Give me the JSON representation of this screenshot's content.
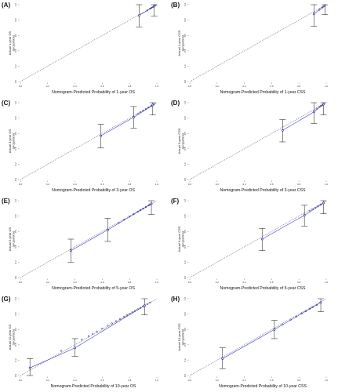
{
  "figure": {
    "panels": [
      {
        "label": "(A)",
        "xlabel": "Nomogram-Predicted Probability of 1-year OS",
        "ylabel_line1": "Actual 1-year OS",
        "ylabel_line2": "(proportion)"
      },
      {
        "label": "(B)",
        "xlabel": "Nomogram-Predicted Probability of 1-year CSS",
        "ylabel_line1": "Actual 1-year CSS",
        "ylabel_line2": "(proportion)"
      },
      {
        "label": "(C)",
        "xlabel": "Nomogram-Predicted Probability of 3-year OS",
        "ylabel_line1": "Actual 3-year OS",
        "ylabel_line2": "(proportion)"
      },
      {
        "label": "(D)",
        "xlabel": "Nomogram-Predicted Probability of 3-year CSS",
        "ylabel_line1": "Actual 3-year CSS",
        "ylabel_line2": "(proportion)"
      },
      {
        "label": "(E)",
        "xlabel": "Nomogram-Predicted Probability of 5-year OS",
        "ylabel_line1": "Actual 5-year OS",
        "ylabel_line2": "(proportion)"
      },
      {
        "label": "(F)",
        "xlabel": "Nomogram-Predicted Probability of 5-year CSS",
        "ylabel_line1": "Actual 5-year CSS",
        "ylabel_line2": "(proportion)"
      },
      {
        "label": "(G)",
        "xlabel": "Nomogram-Predicted Probability of 10-year OS",
        "ylabel_line1": "Actual 10-year OS",
        "ylabel_line2": "(proportion)"
      },
      {
        "label": "(H)",
        "xlabel": "Nomogram-Predicted Probability of 10-year CSS",
        "ylabel_line1": "Actual 10-year CSS",
        "ylabel_line2": "(proportion)"
      }
    ]
  },
  "colors": {
    "ideal_line": "#777777",
    "model_line": "#3a3ad8",
    "points": "#1a1a8c",
    "errorbar": "#111111"
  },
  "chart_data": [
    {
      "type": "scatter",
      "title": "(A)",
      "xlabel": "Nomogram-Predicted Probability of 1-year OS",
      "ylabel": "Actual 1-year OS (proportion)",
      "xlim": [
        0,
        1
      ],
      "ylim": [
        0,
        1
      ],
      "x_ticks": [
        "0.0",
        "0.2",
        "0.4",
        "0.6",
        "0.8",
        "1.0"
      ],
      "y_ticks": [
        "0.0",
        "0.2",
        "0.4",
        "0.6",
        "0.8",
        "1.0"
      ],
      "groups": [
        {
          "x": 0.87,
          "y": 0.86,
          "lo": 0.71,
          "hi": 1.0
        },
        {
          "x": 0.98,
          "y": 0.98,
          "lo": 0.85,
          "hi": 1.0
        }
      ],
      "dense_points": [
        0.93,
        0.95,
        0.96,
        0.97,
        0.99
      ]
    },
    {
      "type": "scatter",
      "title": "(B)",
      "xlabel": "Nomogram-Predicted Probability of 1-year CSS",
      "ylabel": "Actual 1-year CSS (proportion)",
      "xlim": [
        0,
        1
      ],
      "ylim": [
        0,
        1
      ],
      "x_ticks": [
        "0.0",
        "0.2",
        "0.4",
        "0.6",
        "0.8",
        "1.0"
      ],
      "y_ticks": [
        "0.0",
        "0.2",
        "0.4",
        "0.6",
        "0.8",
        "1.0"
      ],
      "groups": [
        {
          "x": 0.91,
          "y": 0.88,
          "lo": 0.72,
          "hi": 1.0
        },
        {
          "x": 0.99,
          "y": 0.99,
          "lo": 0.87,
          "hi": 1.0
        }
      ],
      "dense_points": [
        0.95,
        0.97,
        0.98
      ]
    },
    {
      "type": "scatter",
      "title": "(C)",
      "xlabel": "Nomogram-Predicted Probability of 3-year OS",
      "ylabel": "Actual 3-year OS (proportion)",
      "xlim": [
        0,
        1
      ],
      "ylim": [
        0,
        1
      ],
      "x_ticks": [
        "0.0",
        "0.2",
        "0.4",
        "0.6",
        "0.8",
        "1.0"
      ],
      "y_ticks": [
        "0.0",
        "0.2",
        "0.4",
        "0.6",
        "0.8",
        "1.0"
      ],
      "groups": [
        {
          "x": 0.59,
          "y": 0.57,
          "lo": 0.41,
          "hi": 0.72
        },
        {
          "x": 0.83,
          "y": 0.81,
          "lo": 0.67,
          "hi": 0.95
        },
        {
          "x": 0.97,
          "y": 0.97,
          "lo": 0.84,
          "hi": 1.0
        }
      ],
      "dense_points": [
        0.86,
        0.88,
        0.9,
        0.92,
        0.94,
        0.96,
        0.98
      ]
    },
    {
      "type": "scatter",
      "title": "(D)",
      "xlabel": "Nomogram-Predicted Probability of 3-year CSS",
      "ylabel": "Actual 3-year CSS (proportion)",
      "xlim": [
        0,
        1
      ],
      "ylim": [
        0,
        1
      ],
      "x_ticks": [
        "0.0",
        "0.2",
        "0.4",
        "0.6",
        "0.8",
        "1.0"
      ],
      "y_ticks": [
        "0.0",
        "0.2",
        "0.4",
        "0.6",
        "0.8",
        "1.0"
      ],
      "groups": [
        {
          "x": 0.68,
          "y": 0.64,
          "lo": 0.49,
          "hi": 0.78
        },
        {
          "x": 0.91,
          "y": 0.88,
          "lo": 0.73,
          "hi": 1.0
        },
        {
          "x": 0.98,
          "y": 0.98,
          "lo": 0.84,
          "hi": 1.0
        }
      ],
      "dense_points": [
        0.93,
        0.95,
        0.96,
        0.97
      ]
    },
    {
      "type": "scatter",
      "title": "(E)",
      "xlabel": "Nomogram-Predicted Probability of 5-year OS",
      "ylabel": "Actual 5-year OS (proportion)",
      "xlim": [
        0,
        1
      ],
      "ylim": [
        0,
        1
      ],
      "x_ticks": [
        "0.0",
        "0.2",
        "0.4",
        "0.6",
        "0.8",
        "1.0"
      ],
      "y_ticks": [
        "0.0",
        "0.2",
        "0.4",
        "0.6",
        "0.8",
        "1.0"
      ],
      "groups": [
        {
          "x": 0.37,
          "y": 0.35,
          "lo": 0.2,
          "hi": 0.5
        },
        {
          "x": 0.64,
          "y": 0.62,
          "lo": 0.47,
          "hi": 0.77
        },
        {
          "x": 0.96,
          "y": 0.96,
          "lo": 0.82,
          "hi": 1.0
        }
      ],
      "dense_points": [
        0.72,
        0.76,
        0.8,
        0.83,
        0.86,
        0.88,
        0.9,
        0.92,
        0.94,
        0.95
      ]
    },
    {
      "type": "scatter",
      "title": "(F)",
      "xlabel": "Nomogram-Predicted Probability of 5-year CSS",
      "ylabel": "Actual 5-year CSS (proportion)",
      "xlim": [
        0,
        1
      ],
      "ylim": [
        0,
        1
      ],
      "x_ticks": [
        "0.0",
        "0.2",
        "0.4",
        "0.6",
        "0.8",
        "1.0"
      ],
      "y_ticks": [
        "0.0",
        "0.2",
        "0.4",
        "0.6",
        "0.8",
        "1.0"
      ],
      "groups": [
        {
          "x": 0.53,
          "y": 0.5,
          "lo": 0.35,
          "hi": 0.64
        },
        {
          "x": 0.84,
          "y": 0.81,
          "lo": 0.67,
          "hi": 0.94
        },
        {
          "x": 0.98,
          "y": 0.97,
          "lo": 0.83,
          "hi": 1.0
        }
      ],
      "dense_points": [
        0.88,
        0.9,
        0.92,
        0.94,
        0.96
      ]
    },
    {
      "type": "scatter",
      "title": "(G)",
      "xlabel": "Nomogram-Predicted Probability of 10-year OS",
      "ylabel": "Actual 10-year OS (proportion)",
      "xlim": [
        0,
        1
      ],
      "ylim": [
        0,
        1
      ],
      "x_ticks": [
        "0.0",
        "0.2",
        "0.4",
        "0.6",
        "0.8",
        "1.0"
      ],
      "y_ticks": [
        "0.0",
        "0.2",
        "0.4",
        "0.6",
        "0.8",
        "1.0"
      ],
      "groups": [
        {
          "x": 0.07,
          "y": 0.1,
          "lo": 0.0,
          "hi": 0.22
        },
        {
          "x": 0.4,
          "y": 0.36,
          "lo": 0.25,
          "hi": 0.48
        },
        {
          "x": 0.91,
          "y": 0.91,
          "lo": 0.79,
          "hi": 1.0
        }
      ],
      "dense_points": [
        0.3,
        0.45,
        0.5,
        0.53,
        0.56,
        0.6,
        0.64,
        0.67,
        0.7,
        0.73,
        0.76,
        0.78,
        0.8,
        0.82,
        0.84,
        0.86,
        0.88,
        0.9,
        0.93,
        0.95
      ]
    },
    {
      "type": "scatter",
      "title": "(H)",
      "xlabel": "Nomogram-Predicted Probability of 10-year CSS",
      "ylabel": "Actual 10-year CSS (proportion)",
      "xlim": [
        0,
        1
      ],
      "ylim": [
        0,
        1
      ],
      "x_ticks": [
        "0.0",
        "0.2",
        "0.4",
        "0.6",
        "0.8",
        "1.0"
      ],
      "y_ticks": [
        "0.0",
        "0.2",
        "0.4",
        "0.6",
        "0.8",
        "1.0"
      ],
      "groups": [
        {
          "x": 0.24,
          "y": 0.22,
          "lo": 0.09,
          "hi": 0.36
        },
        {
          "x": 0.62,
          "y": 0.6,
          "lo": 0.48,
          "hi": 0.72
        },
        {
          "x": 0.96,
          "y": 0.95,
          "lo": 0.83,
          "hi": 1.0
        }
      ],
      "dense_points": [
        0.68,
        0.74,
        0.78,
        0.82,
        0.85,
        0.88,
        0.9,
        0.93
      ]
    }
  ]
}
